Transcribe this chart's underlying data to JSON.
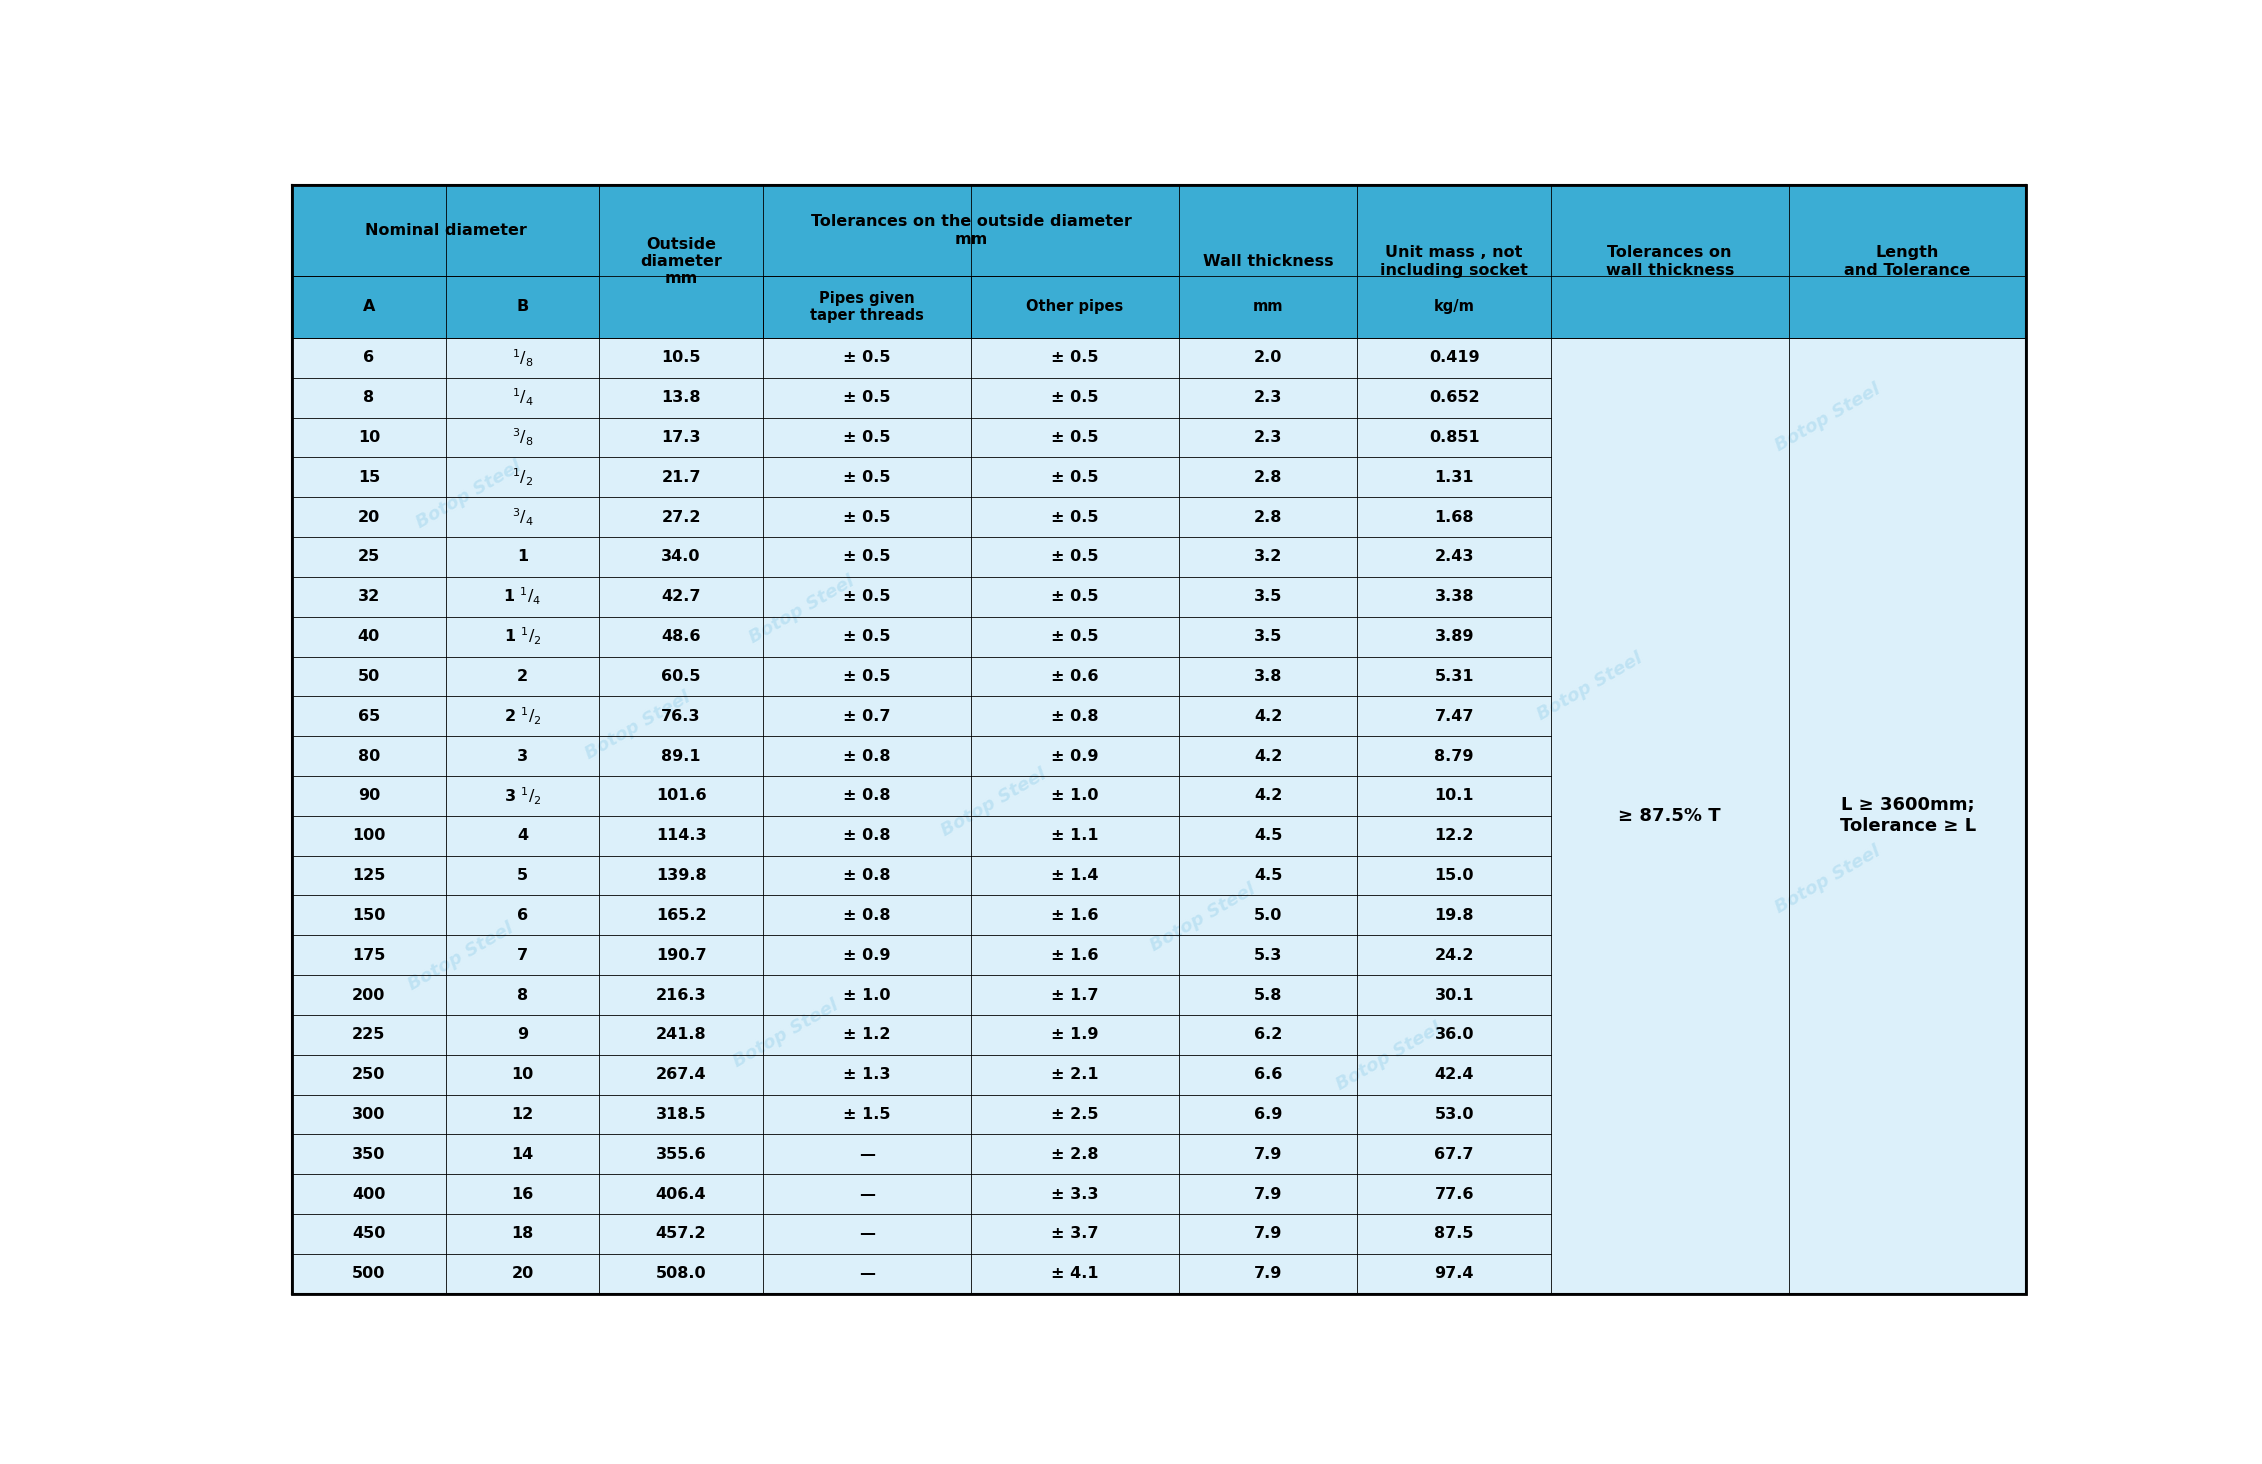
{
  "header_bg": "#3BADD4",
  "data_bg": "#DCF0FA",
  "header_text_color": "#000000",
  "data_text_color": "#1a1a2e",
  "line_color": "#5AAFCC",
  "outer_line_color": "#2E8BB0",
  "col_widths_ratio": [
    1.55,
    1.55,
    1.65,
    2.1,
    2.1,
    1.8,
    1.95,
    2.4,
    2.4
  ],
  "rows": [
    [
      "6",
      "^1/_8",
      "10.5",
      "± 0.5",
      "± 0.5",
      "2.0",
      "0.419"
    ],
    [
      "8",
      "^1/_4",
      "13.8",
      "± 0.5",
      "± 0.5",
      "2.3",
      "0.652"
    ],
    [
      "10",
      "^3/_8",
      "17.3",
      "± 0.5",
      "± 0.5",
      "2.3",
      "0.851"
    ],
    [
      "15",
      "^1/_2",
      "21.7",
      "± 0.5",
      "± 0.5",
      "2.8",
      "1.31"
    ],
    [
      "20",
      "^3/_4",
      "27.2",
      "± 0.5",
      "± 0.5",
      "2.8",
      "1.68"
    ],
    [
      "25",
      "1",
      "34.0",
      "± 0.5",
      "± 0.5",
      "3.2",
      "2.43"
    ],
    [
      "32",
      "1 ^1/_4",
      "42.7",
      "± 0.5",
      "± 0.5",
      "3.5",
      "3.38"
    ],
    [
      "40",
      "1 ^1/_2",
      "48.6",
      "± 0.5",
      "± 0.5",
      "3.5",
      "3.89"
    ],
    [
      "50",
      "2",
      "60.5",
      "± 0.5",
      "± 0.6",
      "3.8",
      "5.31"
    ],
    [
      "65",
      "2 ^1/_2",
      "76.3",
      "± 0.7",
      "± 0.8",
      "4.2",
      "7.47"
    ],
    [
      "80",
      "3",
      "89.1",
      "± 0.8",
      "± 0.9",
      "4.2",
      "8.79"
    ],
    [
      "90",
      "3 ^1/_2",
      "101.6",
      "± 0.8",
      "± 1.0",
      "4.2",
      "10.1"
    ],
    [
      "100",
      "4",
      "114.3",
      "± 0.8",
      "± 1.1",
      "4.5",
      "12.2"
    ],
    [
      "125",
      "5",
      "139.8",
      "± 0.8",
      "± 1.4",
      "4.5",
      "15.0"
    ],
    [
      "150",
      "6",
      "165.2",
      "± 0.8",
      "± 1.6",
      "5.0",
      "19.8"
    ],
    [
      "175",
      "7",
      "190.7",
      "± 0.9",
      "± 1.6",
      "5.3",
      "24.2"
    ],
    [
      "200",
      "8",
      "216.3",
      "± 1.0",
      "± 1.7",
      "5.8",
      "30.1"
    ],
    [
      "225",
      "9",
      "241.8",
      "± 1.2",
      "± 1.9",
      "6.2",
      "36.0"
    ],
    [
      "250",
      "10",
      "267.4",
      "± 1.3",
      "± 2.1",
      "6.6",
      "42.4"
    ],
    [
      "300",
      "12",
      "318.5",
      "± 1.5",
      "± 2.5",
      "6.9",
      "53.0"
    ],
    [
      "350",
      "14",
      "355.6",
      "—",
      "± 2.8",
      "7.9",
      "67.7"
    ],
    [
      "400",
      "16",
      "406.4",
      "—",
      "± 3.3",
      "7.9",
      "77.6"
    ],
    [
      "450",
      "18",
      "457.2",
      "—",
      "± 3.7",
      "7.9",
      "87.5"
    ],
    [
      "500",
      "20",
      "508.0",
      "—",
      "± 4.1",
      "7.9",
      "97.4"
    ]
  ],
  "tolerance_wall": "≥ 87.5% T",
  "length_tolerance": "L ≥ 3600mm;\nTolerance ≥ L",
  "watermark": "Botop Steel"
}
